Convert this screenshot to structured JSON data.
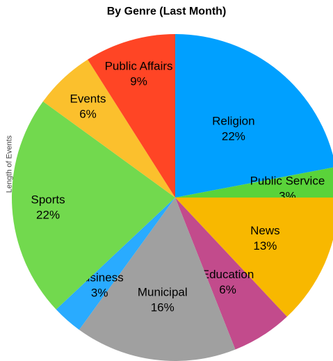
{
  "chart_data": {
    "type": "pie",
    "title": "By Genre (Last Month)",
    "side_label": "Length of Events",
    "slices": [
      {
        "name": "Religion",
        "label": "22%",
        "value": 22,
        "color": "#00A0FF"
      },
      {
        "name": "Public Service",
        "label": "3%",
        "value": 3,
        "color": "#5AD33A"
      },
      {
        "name": "News",
        "label": "13%",
        "value": 13,
        "color": "#F8B800"
      },
      {
        "name": "Education",
        "label": "6%",
        "value": 6,
        "color": "#C24B8C"
      },
      {
        "name": "Municipal",
        "label": "16%",
        "value": 16,
        "color": "#A0A0A0"
      },
      {
        "name": "Business",
        "label": "3%",
        "value": 3,
        "color": "#29ABFF"
      },
      {
        "name": "Sports",
        "label": "22%",
        "value": 22,
        "color": "#72D94E"
      },
      {
        "name": "Events",
        "label": "6%",
        "value": 6,
        "color": "#FBC02D"
      },
      {
        "name": "Public Affairs",
        "label": "9%",
        "value": 9,
        "color": "#FF4525"
      }
    ]
  }
}
